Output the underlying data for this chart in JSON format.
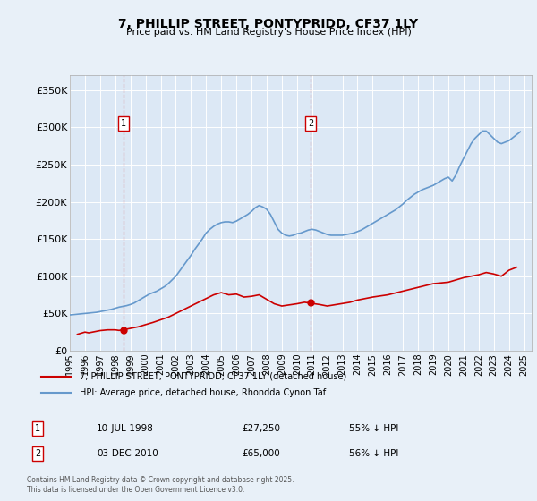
{
  "title": "7, PHILLIP STREET, PONTYPRIDD, CF37 1LY",
  "subtitle": "Price paid vs. HM Land Registry's House Price Index (HPI)",
  "background_color": "#e8f0f8",
  "plot_bg_color": "#dce8f5",
  "ylabel_ticks": [
    "£0",
    "£50K",
    "£100K",
    "£150K",
    "£200K",
    "£250K",
    "£300K",
    "£350K"
  ],
  "ytick_values": [
    0,
    50000,
    100000,
    150000,
    200000,
    250000,
    300000,
    350000
  ],
  "ylim": [
    0,
    370000
  ],
  "xlim_start": 1995.0,
  "xlim_end": 2025.5,
  "legend_line1": "7, PHILLIP STREET, PONTYPRIDD, CF37 1LY (detached house)",
  "legend_line2": "HPI: Average price, detached house, Rhondda Cynon Taf",
  "line1_color": "#cc0000",
  "line2_color": "#6699cc",
  "annotation1_date": "10-JUL-1998",
  "annotation1_price": "£27,250",
  "annotation1_pct": "55% ↓ HPI",
  "annotation2_date": "03-DEC-2010",
  "annotation2_price": "£65,000",
  "annotation2_pct": "56% ↓ HPI",
  "marker1_year": 1998.52,
  "marker1_value": 27250,
  "marker2_year": 2010.92,
  "marker2_value": 65000,
  "footnote": "Contains HM Land Registry data © Crown copyright and database right 2025.\nThis data is licensed under the Open Government Licence v3.0.",
  "hpi_data_x": [
    1995.0,
    1995.25,
    1995.5,
    1995.75,
    1996.0,
    1996.25,
    1996.5,
    1996.75,
    1997.0,
    1997.25,
    1997.5,
    1997.75,
    1998.0,
    1998.25,
    1998.5,
    1998.75,
    1999.0,
    1999.25,
    1999.5,
    1999.75,
    2000.0,
    2000.25,
    2000.5,
    2000.75,
    2001.0,
    2001.25,
    2001.5,
    2001.75,
    2002.0,
    2002.25,
    2002.5,
    2002.75,
    2003.0,
    2003.25,
    2003.5,
    2003.75,
    2004.0,
    2004.25,
    2004.5,
    2004.75,
    2005.0,
    2005.25,
    2005.5,
    2005.75,
    2006.0,
    2006.25,
    2006.5,
    2006.75,
    2007.0,
    2007.25,
    2007.5,
    2007.75,
    2008.0,
    2008.25,
    2008.5,
    2008.75,
    2009.0,
    2009.25,
    2009.5,
    2009.75,
    2010.0,
    2010.25,
    2010.5,
    2010.75,
    2011.0,
    2011.25,
    2011.5,
    2011.75,
    2012.0,
    2012.25,
    2012.5,
    2012.75,
    2013.0,
    2013.25,
    2013.5,
    2013.75,
    2014.0,
    2014.25,
    2014.5,
    2014.75,
    2015.0,
    2015.25,
    2015.5,
    2015.75,
    2016.0,
    2016.25,
    2016.5,
    2016.75,
    2017.0,
    2017.25,
    2017.5,
    2017.75,
    2018.0,
    2018.25,
    2018.5,
    2018.75,
    2019.0,
    2019.25,
    2019.5,
    2019.75,
    2020.0,
    2020.25,
    2020.5,
    2020.75,
    2021.0,
    2021.25,
    2021.5,
    2021.75,
    2022.0,
    2022.25,
    2022.5,
    2022.75,
    2023.0,
    2023.25,
    2023.5,
    2023.75,
    2024.0,
    2024.25,
    2024.5,
    2024.75
  ],
  "hpi_data_y": [
    48000,
    48500,
    49000,
    49500,
    50000,
    50500,
    51000,
    51500,
    52500,
    53500,
    54500,
    55500,
    57000,
    58500,
    59500,
    60500,
    62000,
    64000,
    67000,
    70000,
    73000,
    76000,
    78000,
    80000,
    83000,
    86000,
    90000,
    95000,
    100000,
    107000,
    114000,
    121000,
    128000,
    136000,
    143000,
    150000,
    158000,
    163000,
    167000,
    170000,
    172000,
    173000,
    173000,
    172000,
    174000,
    177000,
    180000,
    183000,
    187000,
    192000,
    195000,
    193000,
    190000,
    183000,
    173000,
    163000,
    158000,
    155000,
    154000,
    155000,
    157000,
    158000,
    160000,
    162000,
    163000,
    162000,
    160000,
    158000,
    156000,
    155000,
    155000,
    155000,
    155000,
    156000,
    157000,
    158000,
    160000,
    162000,
    165000,
    168000,
    171000,
    174000,
    177000,
    180000,
    183000,
    186000,
    189000,
    193000,
    197000,
    202000,
    206000,
    210000,
    213000,
    216000,
    218000,
    220000,
    222000,
    225000,
    228000,
    231000,
    233000,
    228000,
    236000,
    248000,
    258000,
    268000,
    278000,
    285000,
    290000,
    295000,
    295000,
    290000,
    285000,
    280000,
    278000,
    280000,
    282000,
    286000,
    290000,
    294000
  ],
  "price_data_x": [
    1995.5,
    1996.0,
    1996.25,
    1996.5,
    1996.75,
    1997.0,
    1997.5,
    1998.0,
    1998.25,
    1998.75,
    1999.0,
    1999.5,
    2000.5,
    2001.5,
    2002.0,
    2002.5,
    2003.5,
    2004.5,
    2005.0,
    2005.5,
    2006.0,
    2006.5,
    2007.0,
    2007.5,
    2008.5,
    2009.0,
    2010.0,
    2010.5,
    2011.5,
    2012.0,
    2013.5,
    2014.0,
    2015.0,
    2016.0,
    2017.0,
    2018.0,
    2019.0,
    2020.0,
    2021.0,
    2022.0,
    2022.5,
    2023.0,
    2023.5,
    2024.0,
    2024.5
  ],
  "price_data_y": [
    22000,
    25000,
    24000,
    25000,
    26000,
    27000,
    28000,
    28000,
    27250,
    29000,
    30000,
    32000,
    38000,
    45000,
    50000,
    55000,
    65000,
    75000,
    78000,
    75000,
    76000,
    72000,
    73000,
    75000,
    63000,
    60000,
    63000,
    65000,
    62000,
    60000,
    65000,
    68000,
    72000,
    75000,
    80000,
    85000,
    90000,
    92000,
    98000,
    102000,
    105000,
    103000,
    100000,
    108000,
    112000
  ]
}
